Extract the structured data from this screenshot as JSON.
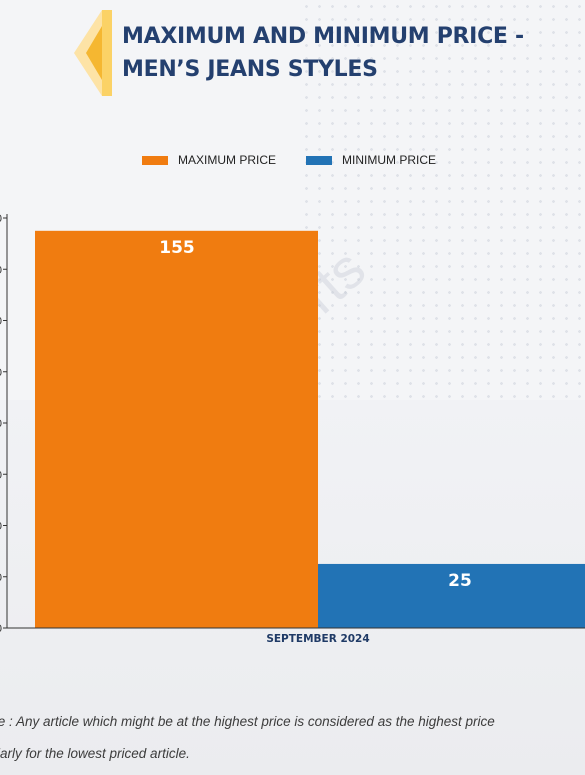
{
  "header": {
    "title_line1": "MAXIMUM AND MINIMUM PRICE -",
    "title_line2": "MEN’S JEANS STYLES"
  },
  "legend": {
    "max_label": "MAXIMUM PRICE",
    "min_label": "MINIMUM PRICE"
  },
  "colors": {
    "max": "#f07c10",
    "min": "#2273b5",
    "title": "#24406f",
    "chevron_light": "#fde3a6",
    "chevron_dark": "#f5b731"
  },
  "watermark": "D&J Reports",
  "note": {
    "line1": "te : Any article which might be at the highest price is considered as the highest price",
    "line2": "ilarly for the lowest priced article."
  },
  "chart_data": {
    "type": "bar",
    "categories": [
      "SEPTEMBER 2024"
    ],
    "series": [
      {
        "name": "MAXIMUM PRICE",
        "values": [
          155
        ]
      },
      {
        "name": "MINIMUM PRICE",
        "values": [
          25
        ]
      }
    ],
    "ylim": [
      0,
      160
    ],
    "ytick_step": 20,
    "data_labels": true,
    "legend_position": "top",
    "grid": false
  }
}
